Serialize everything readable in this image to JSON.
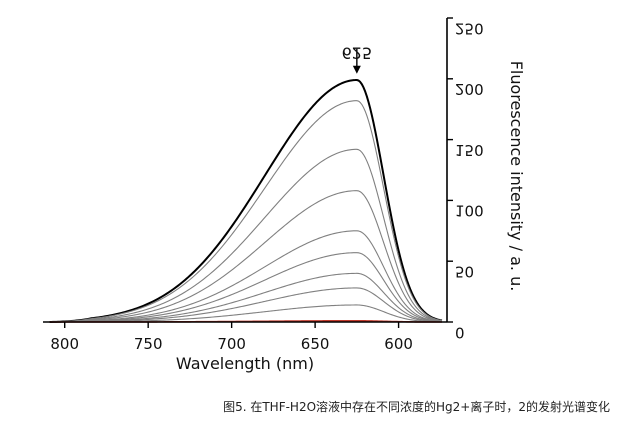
{
  "chart_data": {
    "type": "line",
    "xlabel": "Wavelength (nm)",
    "ylabel": "Fluorescence intensity / a. u.",
    "x_ticks": [
      600,
      650,
      700,
      750,
      800
    ],
    "y_ticks": [
      0,
      50,
      100,
      150,
      200,
      250
    ],
    "xlim": [
      571,
      813
    ],
    "ylim": [
      0,
      250
    ],
    "x_reversed": true,
    "legend": "none",
    "grid": false,
    "annotation": {
      "text": "625",
      "x": 625,
      "y": 200
    },
    "peak_x": 625,
    "sigma_left": 16,
    "sigma_right": 55,
    "start_x": 809,
    "series": [
      {
        "peak": 199,
        "color": "#000000",
        "width": 2.0
      },
      {
        "peak": 182,
        "color": "#808080",
        "width": 1.1
      },
      {
        "peak": 142,
        "color": "#808080",
        "width": 1.1
      },
      {
        "peak": 108,
        "color": "#808080",
        "width": 1.1
      },
      {
        "peak": 75,
        "color": "#808080",
        "width": 1.1
      },
      {
        "peak": 57,
        "color": "#808080",
        "width": 1.1
      },
      {
        "peak": 40,
        "color": "#808080",
        "width": 1.1
      },
      {
        "peak": 28,
        "color": "#808080",
        "width": 1.1
      },
      {
        "peak": 14,
        "color": "#808080",
        "width": 1.1
      },
      {
        "peak": 1,
        "color": "#c0392b",
        "width": 1.6
      }
    ]
  },
  "caption": "图5. 在THF-H2O溶液中存在不同浓度的Hg2+离子时，2的发射光谱变化"
}
